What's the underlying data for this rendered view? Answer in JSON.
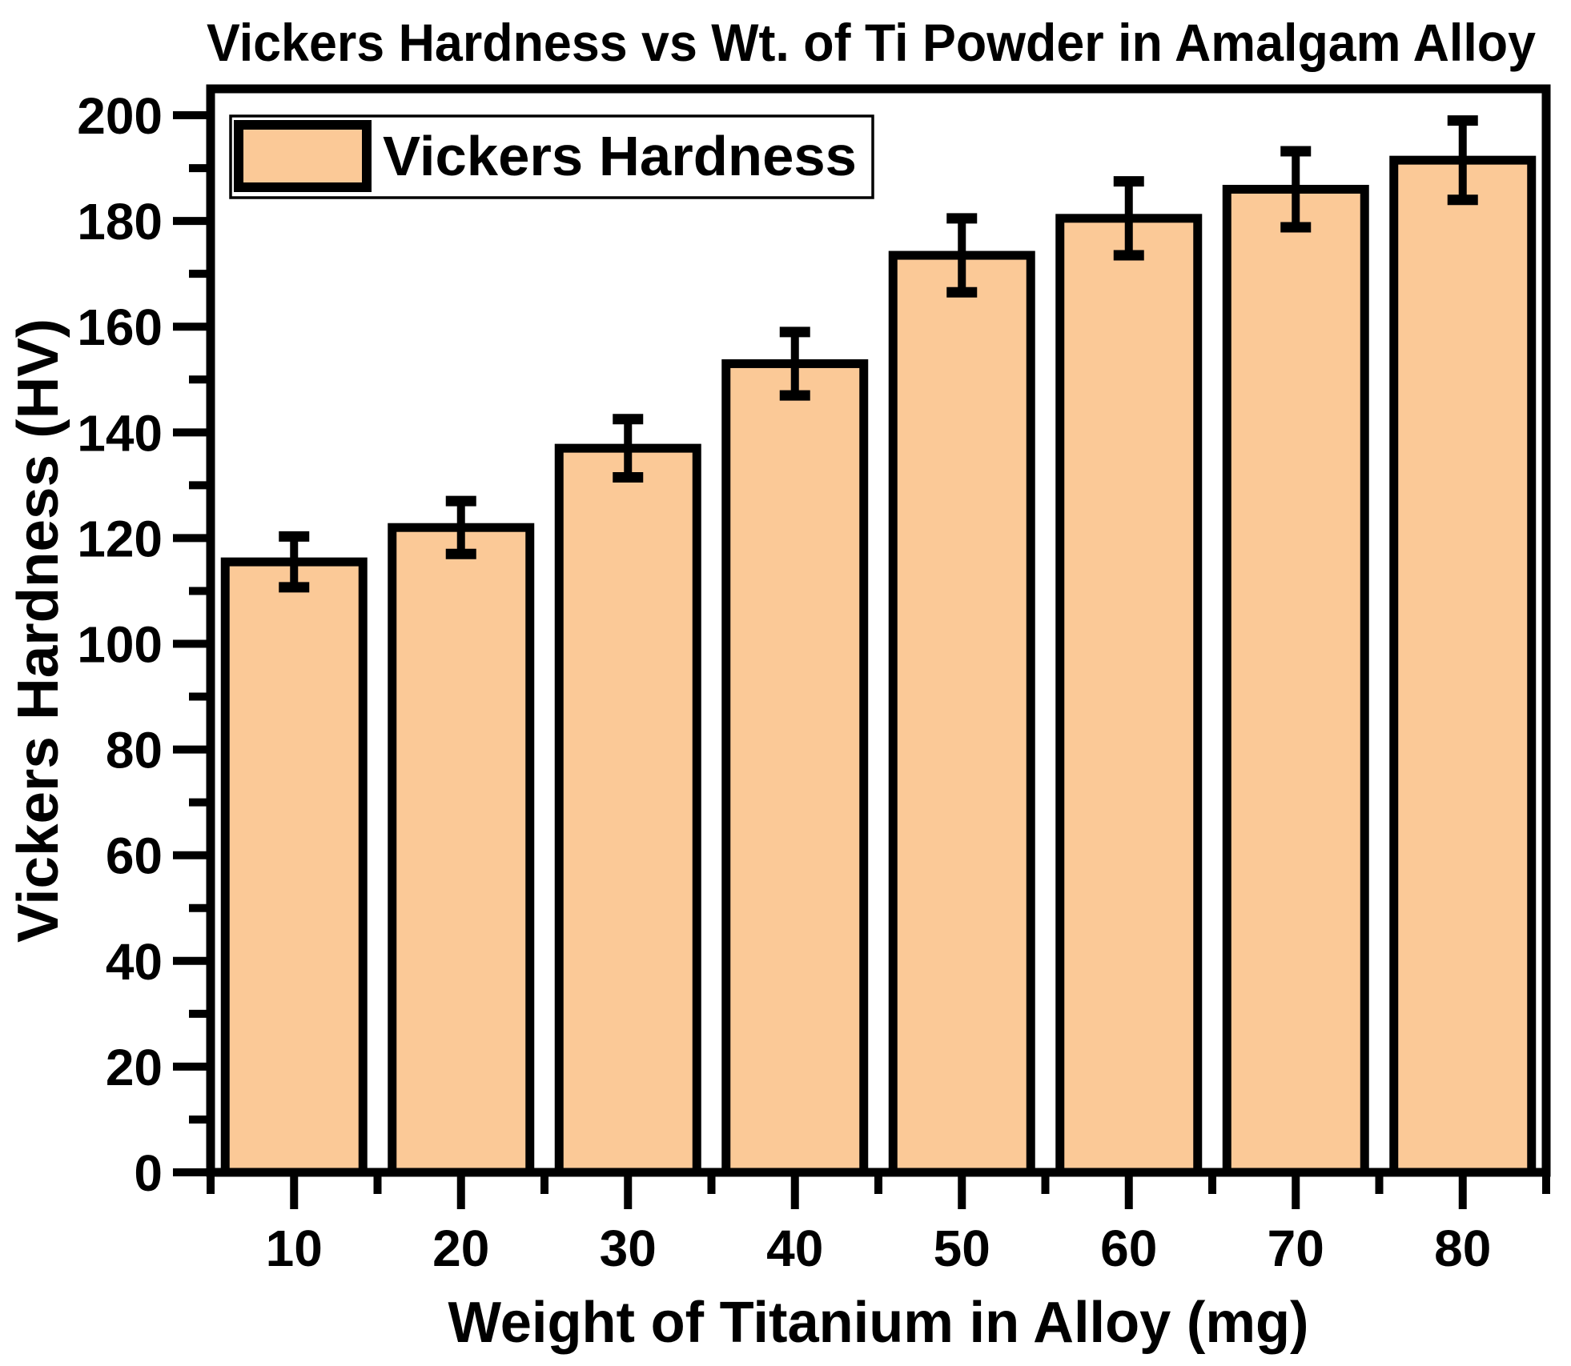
{
  "chart_data": {
    "type": "bar",
    "title": "Vickers Hardness vs Wt. of Ti Powder in Amalgam Alloy",
    "xlabel": "Weight of Titanium in Alloy (mg)",
    "ylabel": "Vickers Hardness (HV)",
    "legend": {
      "label": "Vickers Hardness",
      "position": "top-left"
    },
    "categories": [
      10,
      20,
      30,
      40,
      50,
      60,
      70,
      80
    ],
    "series": [
      {
        "name": "Vickers Hardness",
        "values": [
          115.5,
          122,
          137,
          153,
          173.5,
          180.5,
          186,
          191.5
        ],
        "errors": [
          4.8,
          5,
          5.5,
          6,
          7,
          7,
          7.2,
          7.5
        ]
      }
    ],
    "x_axis": {
      "min": 5,
      "max": 85,
      "major_tick_step": 10,
      "minor_tick_step": 5,
      "tick_labels": [
        "10",
        "20",
        "30",
        "40",
        "50",
        "60",
        "70",
        "80"
      ]
    },
    "y_axis": {
      "min": 0,
      "max": 205,
      "major_tick_step": 20,
      "minor_tick_step": 10,
      "tick_labels": [
        "0",
        "20",
        "40",
        "60",
        "80",
        "100",
        "120",
        "140",
        "160",
        "180",
        "200"
      ]
    },
    "grid": false,
    "error_bars": true,
    "colors": {
      "bar_fill": "#FBC997",
      "bar_border": "#000000",
      "frame": "#000000",
      "text": "#000000",
      "background": "#FFFFFF"
    }
  }
}
